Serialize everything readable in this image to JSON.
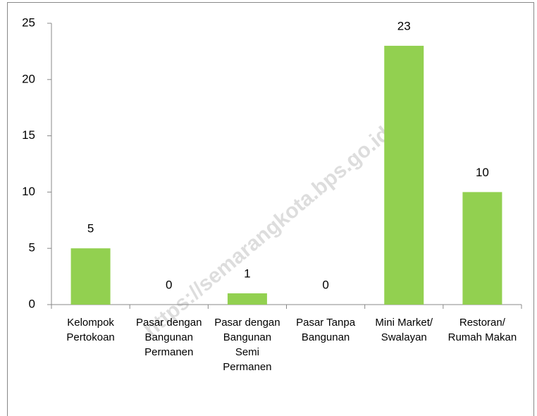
{
  "chart_data": {
    "type": "bar",
    "categories": [
      "Kelompok Pertokoan",
      "Pasar dengan Bangunan Permanen",
      "Pasar dengan Bangunan Semi Permanen",
      "Pasar Tanpa Bangunan",
      "Mini Market/ Swalayan",
      "Restoran/ Rumah Makan"
    ],
    "values": [
      5,
      0,
      1,
      0,
      23,
      10
    ],
    "color": "#92d050",
    "ylim": [
      0,
      25
    ],
    "yticks": [
      0,
      5,
      10,
      15,
      20,
      25
    ],
    "watermark": "https://semarangkota.bps.go.id"
  }
}
